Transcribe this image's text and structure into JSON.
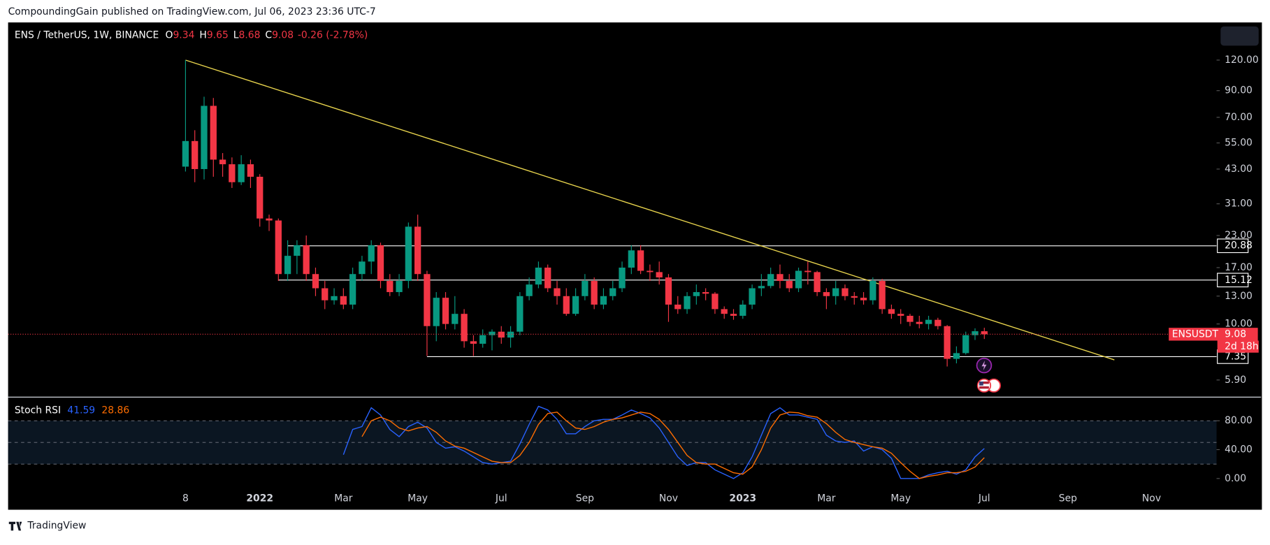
{
  "header": "CompoundingGain published on TradingView.com, Jul 06, 2023 23:36 UTC-7",
  "footer": "TradingView",
  "chart_data": [
    {
      "type": "candlestick",
      "title": "ENS / TetherUS, 1W, BINANCE",
      "ohlc_labels": [
        "O",
        "H",
        "L",
        "C"
      ],
      "change": "-0.26 (-2.78%)",
      "x": [
        0,
        1,
        2,
        3,
        4,
        5,
        6,
        7,
        8,
        9,
        10,
        11,
        12,
        13,
        14,
        15,
        16,
        17,
        18,
        19,
        20,
        21,
        22,
        23,
        24,
        25,
        26,
        27,
        28,
        29,
        30,
        31,
        32,
        33,
        34,
        35,
        36,
        37,
        38,
        39,
        40,
        41,
        42,
        43,
        44,
        45,
        46,
        47,
        48,
        49,
        50,
        51,
        52,
        53,
        54,
        55,
        56,
        57,
        58,
        59,
        60,
        61,
        62,
        63,
        64,
        65,
        66,
        67,
        68,
        69,
        70,
        71,
        72,
        73,
        74,
        75,
        76,
        77,
        78,
        79,
        80,
        81,
        82,
        83,
        84,
        85,
        86
      ],
      "open": [
        44,
        56,
        43,
        78,
        47,
        45,
        38,
        45,
        40,
        27,
        26.5,
        16,
        19,
        21,
        16,
        14,
        12.5,
        13,
        12,
        16,
        18,
        21,
        15,
        13.5,
        15,
        25,
        16,
        9.8,
        12.8,
        10,
        11,
        8.5,
        8.3,
        9,
        9.3,
        8.8,
        9.3,
        13,
        14.5,
        17,
        14,
        13,
        11,
        13,
        15,
        12,
        13,
        14,
        17,
        20,
        16.5,
        16.3,
        15.5,
        12,
        11.5,
        13,
        13.5,
        13.3,
        11.5,
        11,
        10.8,
        12,
        14,
        14.3,
        16,
        15,
        14,
        16.5,
        16.3,
        13.5,
        13,
        14,
        13,
        12.8,
        12.5,
        15,
        11.5,
        11,
        10.8,
        10.2,
        10,
        10.4,
        9.8,
        7.2,
        7.6,
        9,
        9.34
      ],
      "high": [
        120,
        62,
        85,
        84,
        50,
        48,
        49,
        47,
        41,
        28,
        27,
        22,
        22,
        23,
        17,
        15,
        14,
        14,
        17,
        19,
        22,
        21.5,
        16,
        16,
        26,
        28,
        16.5,
        13.5,
        13.5,
        13,
        11.5,
        9,
        9.5,
        9.5,
        9.8,
        9.8,
        13.5,
        15.5,
        18,
        17.5,
        15,
        14,
        14,
        16,
        15.5,
        14,
        15,
        18,
        21,
        21,
        17.5,
        18,
        16,
        13,
        13.5,
        14.5,
        14,
        13.5,
        11.8,
        11.5,
        12.5,
        14.5,
        16,
        17,
        17.5,
        16,
        17,
        18,
        16.5,
        14,
        15,
        14.5,
        13.5,
        13.5,
        15.5,
        15.3,
        12,
        11.5,
        11,
        10.8,
        10.8,
        10.6,
        9.9,
        8.1,
        9.3,
        9.6,
        9.65
      ],
      "low": [
        42,
        38,
        39,
        40,
        40,
        36,
        37,
        36,
        25,
        24,
        15,
        15,
        16,
        15,
        13,
        11.5,
        12,
        11.5,
        11.5,
        15,
        16,
        14,
        13,
        13,
        14,
        15,
        7.4,
        8.5,
        9.5,
        9.5,
        8,
        7.4,
        8,
        7.8,
        8.3,
        8,
        9,
        12.5,
        14,
        13.5,
        12,
        10.8,
        10.8,
        12.5,
        11.5,
        11.5,
        12.5,
        13.5,
        16,
        16,
        15,
        14.5,
        10.2,
        11,
        11,
        12,
        12.5,
        11,
        10.5,
        10.4,
        10.5,
        11.5,
        13,
        14,
        14,
        13.5,
        13.5,
        14.5,
        13,
        11.5,
        12,
        12.5,
        12,
        12,
        12,
        11,
        10.5,
        10,
        9.8,
        9.6,
        9.5,
        9.5,
        6.7,
        6.9,
        7.5,
        8.6,
        8.68
      ],
      "close": [
        56,
        43,
        78,
        47,
        45,
        38,
        45,
        40,
        27,
        26.5,
        16,
        19,
        21,
        16,
        14,
        12.5,
        13,
        12,
        16,
        18,
        21,
        15,
        13.5,
        15,
        25,
        16,
        9.8,
        12.8,
        10,
        11,
        8.5,
        8.3,
        9,
        9.3,
        8.8,
        9.3,
        13,
        14.5,
        17,
        14,
        13,
        11,
        13,
        15,
        12,
        13,
        14,
        17,
        20,
        16.5,
        16.3,
        15.5,
        12,
        11.5,
        13,
        13.5,
        13.3,
        11.5,
        11,
        10.8,
        12,
        14,
        14.3,
        16,
        15,
        14,
        16.5,
        16.3,
        13.5,
        13,
        14,
        13,
        12.8,
        12.5,
        15,
        11.5,
        11,
        10.8,
        10.2,
        10,
        10.4,
        9.8,
        7.2,
        7.6,
        9,
        9.34,
        9.08
      ],
      "up_color": "#089981",
      "down_color": "#f23645",
      "log_scale": true,
      "ylim": [
        5.04,
        168.5
      ],
      "yticks": [
        {
          "value": 120,
          "label": "120.00"
        },
        {
          "value": 90,
          "label": "90.00"
        },
        {
          "value": 70,
          "label": "70.00"
        },
        {
          "value": 55,
          "label": "55.00"
        },
        {
          "value": 43,
          "label": "43.00"
        },
        {
          "value": 31,
          "label": "31.00"
        },
        {
          "value": 23,
          "label": "23.00"
        },
        {
          "value": 17,
          "label": "17.00"
        },
        {
          "value": 13,
          "label": "13.00"
        },
        {
          "value": 10,
          "label": "10.00"
        },
        {
          "value": 5.9,
          "label": "5.90"
        }
      ],
      "xlim": [
        -19.1,
        111
      ],
      "xticks": [
        {
          "value": 0,
          "label": "8"
        },
        {
          "value": 8,
          "label": "2022"
        },
        {
          "value": 17,
          "label": "Mar"
        },
        {
          "value": 25,
          "label": "May"
        },
        {
          "value": 34,
          "label": "Jul"
        },
        {
          "value": 43,
          "label": "Sep"
        },
        {
          "value": 52,
          "label": "Nov"
        },
        {
          "value": 60,
          "label": "2023"
        },
        {
          "value": 69,
          "label": "Mar"
        },
        {
          "value": 77,
          "label": "May"
        },
        {
          "value": 86,
          "label": "Jul"
        },
        {
          "value": 95,
          "label": "Sep"
        },
        {
          "value": 104,
          "label": "Nov"
        }
      ],
      "levels": [
        {
          "value": 20.88,
          "from": 11
        },
        {
          "value": 15.12,
          "from": 10
        },
        {
          "value": 7.35,
          "from": 26
        }
      ],
      "level_color": "#ffffff",
      "trendline": {
        "x": [
          0,
          100
        ],
        "values": [
          120,
          7.13
        ],
        "color": "#e8d44d"
      },
      "last_price_label": "ENSUSDT",
      "countdown": "2d 18h"
    },
    {
      "type": "line",
      "title": "Stoch RSI",
      "x": [
        0,
        1,
        2,
        3,
        4,
        5,
        6,
        7,
        8,
        9,
        10,
        11,
        12,
        13,
        14,
        15,
        16,
        17,
        18,
        19,
        20,
        21,
        22,
        23,
        24,
        25,
        26,
        27,
        28,
        29,
        30,
        31,
        32,
        33,
        34,
        35,
        36,
        37,
        38,
        39,
        40,
        41,
        42,
        43,
        44,
        45,
        46,
        47,
        48,
        49,
        50,
        51,
        52,
        53,
        54,
        55,
        56,
        57,
        58,
        59,
        60,
        61,
        62,
        63,
        64,
        65,
        66,
        67,
        68,
        69,
        70,
        71,
        72,
        73,
        74,
        75,
        76,
        77,
        78,
        79,
        80,
        81,
        82,
        83,
        84,
        85,
        86
      ],
      "series": [
        {
          "color": "#2962ff",
          "values": [
            null,
            null,
            null,
            null,
            null,
            null,
            null,
            null,
            null,
            null,
            null,
            null,
            null,
            null,
            null,
            null,
            null,
            33,
            68,
            72,
            98,
            88,
            68,
            58,
            72,
            78,
            70,
            50,
            42,
            44,
            38,
            30,
            22,
            20,
            22,
            24,
            48,
            75,
            100,
            95,
            82,
            62,
            62,
            72,
            80,
            82,
            82,
            88,
            95,
            90,
            84,
            70,
            50,
            30,
            18,
            22,
            22,
            12,
            6,
            0,
            8,
            30,
            60,
            90,
            98,
            88,
            88,
            85,
            82,
            60,
            52,
            50,
            52,
            38,
            44,
            40,
            28,
            0,
            0,
            0,
            5,
            8,
            10,
            6,
            12,
            30,
            41.59
          ]
        },
        {
          "color": "#ff6d00",
          "values": [
            null,
            null,
            null,
            null,
            null,
            null,
            null,
            null,
            null,
            null,
            null,
            null,
            null,
            null,
            null,
            null,
            null,
            null,
            null,
            58,
            80,
            85,
            80,
            70,
            66,
            70,
            72,
            64,
            52,
            45,
            42,
            36,
            30,
            24,
            22,
            22,
            32,
            50,
            75,
            90,
            92,
            80,
            70,
            68,
            72,
            78,
            82,
            84,
            88,
            92,
            90,
            82,
            68,
            50,
            32,
            22,
            20,
            20,
            14,
            8,
            6,
            16,
            40,
            70,
            88,
            92,
            91,
            87,
            85,
            76,
            64,
            54,
            50,
            47,
            44,
            42,
            35,
            22,
            10,
            0,
            3,
            5,
            8,
            8,
            10,
            16,
            28.86
          ]
        }
      ],
      "ylim": [
        -14.4,
        111.1
      ],
      "yticks": [
        {
          "value": 80,
          "label": "80.00"
        },
        {
          "value": 40,
          "label": "40.00"
        },
        {
          "value": 0,
          "label": "0.00"
        }
      ],
      "bands": [
        80,
        50,
        20
      ]
    }
  ]
}
